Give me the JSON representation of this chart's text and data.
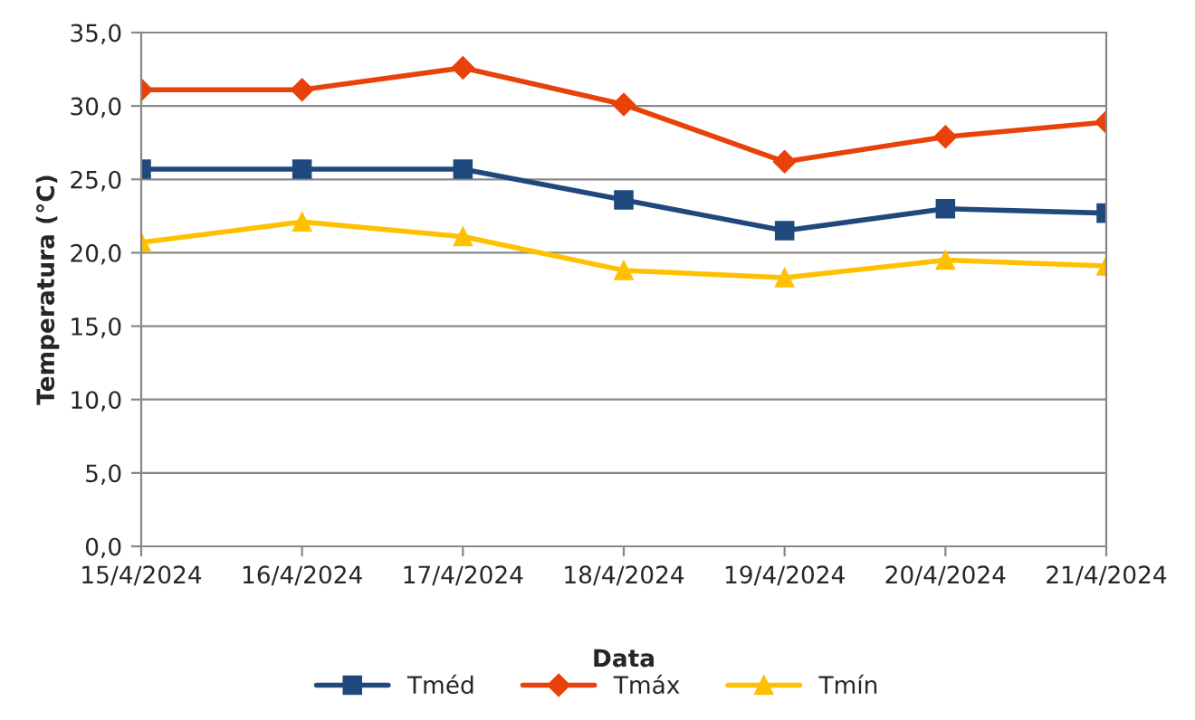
{
  "chart_data": {
    "type": "line",
    "xlabel": "Data",
    "ylabel": "Temperatura (°C)",
    "categories": [
      "15/4/2024",
      "16/4/2024",
      "17/4/2024",
      "18/4/2024",
      "19/4/2024",
      "20/4/2024",
      "21/4/2024"
    ],
    "series": [
      {
        "name": "Tméd",
        "color": "#1f497d",
        "marker": "square",
        "values": [
          25.7,
          25.7,
          25.7,
          23.6,
          21.5,
          23.0,
          22.7
        ]
      },
      {
        "name": "Tmáx",
        "color": "#e8420a",
        "marker": "diamond",
        "values": [
          31.1,
          31.1,
          32.6,
          30.1,
          26.2,
          27.9,
          28.9
        ]
      },
      {
        "name": "Tmín",
        "color": "#ffc000",
        "marker": "triangle",
        "values": [
          20.7,
          22.1,
          21.1,
          18.8,
          18.3,
          19.5,
          19.1
        ]
      }
    ],
    "ylim": [
      0,
      35
    ],
    "yticks": [
      {
        "value": 0,
        "label": "0,0"
      },
      {
        "value": 5,
        "label": "5,0"
      },
      {
        "value": 10,
        "label": "10,0"
      },
      {
        "value": 15,
        "label": "15,0"
      },
      {
        "value": 20,
        "label": "20,0"
      },
      {
        "value": 25,
        "label": "25,0"
      },
      {
        "value": 30,
        "label": "30,0"
      },
      {
        "value": 35,
        "label": "35,0"
      }
    ],
    "grid": "y",
    "legend": "bottom",
    "line_style": "solid"
  }
}
